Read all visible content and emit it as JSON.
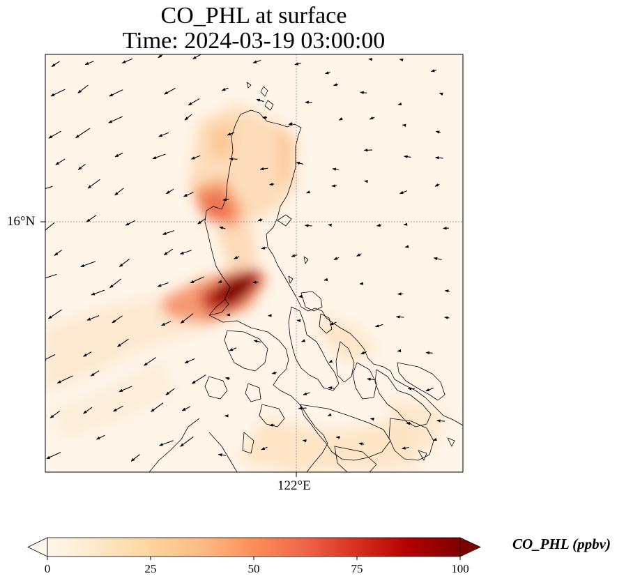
{
  "title": {
    "line1": "CO_PHL at surface",
    "line2": "Time: 2024-03-19 03:00:00"
  },
  "axes": {
    "lat_tick_label": "16°N",
    "lon_tick_label": "122°E"
  },
  "colorbar": {
    "label": "CO_PHL (ppbv)",
    "colormap": "OrRd",
    "colors": [
      "#fff7ec",
      "#fee8c8",
      "#fdd49e",
      "#fdbb84",
      "#fc8d59",
      "#ef6548",
      "#d7301f",
      "#b30000",
      "#7f0000"
    ],
    "ticks": [
      "0",
      "25",
      "50",
      "75",
      "100"
    ],
    "range": [
      0,
      100
    ],
    "extend": "both"
  },
  "colors": {
    "background": "#fff5e9",
    "coastline": "#000000",
    "gridline": "#888888",
    "vector": "#000000"
  }
}
